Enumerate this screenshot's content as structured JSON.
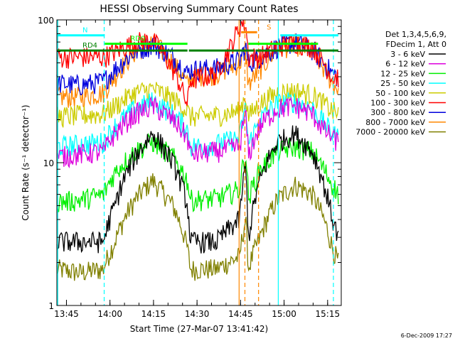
{
  "chart_data": {
    "type": "line",
    "title": "HESSI Observing Summary Count Rates",
    "xlabel": "Start Time (27-Mar-07 13:41:42)",
    "ylabel": "Count Rate (s⁻¹ detector⁻¹)",
    "x_unit": "minutes after 13:41:42",
    "xlim": [
      0,
      98
    ],
    "ylim": [
      1,
      100
    ],
    "yscale": "log",
    "x_tick_labels": [
      "13:45",
      "14:00",
      "14:15",
      "14:30",
      "14:45",
      "15:00",
      "15:15"
    ],
    "x_tick_values": [
      3.3,
      18.3,
      33.3,
      48.3,
      63.3,
      78.3,
      93.3
    ],
    "y_tick_labels": [
      "1",
      "10",
      "100"
    ],
    "y_tick_values": [
      1,
      10,
      100
    ],
    "legend_header": [
      "Det 1,3,4,5,6,9,",
      "FDecim 1, Att 0"
    ],
    "legend_placement": "right",
    "footer_date": "6-Dec-2009 17:27",
    "series": [
      {
        "name": "3 - 6 keV",
        "color": "#000000",
        "x": [
          0,
          8,
          16,
          20,
          27,
          33,
          40,
          45,
          46,
          55,
          63,
          65,
          66,
          70,
          76,
          82,
          88,
          92,
          95,
          97
        ],
        "y": [
          2.8,
          2.8,
          2.8,
          5.0,
          11.0,
          16.0,
          10.0,
          5.0,
          2.8,
          2.8,
          4.0,
          9.5,
          2.8,
          7.5,
          14.0,
          16.0,
          12.0,
          7.0,
          4.0,
          3.0
        ]
      },
      {
        "name": "6 - 12 keV",
        "color": "#dd00dd",
        "x": [
          0,
          8,
          16,
          20,
          27,
          33,
          40,
          45,
          46,
          55,
          63,
          65,
          66,
          70,
          76,
          82,
          88,
          92,
          95,
          97
        ],
        "y": [
          11.0,
          11.5,
          12.0,
          16.0,
          22.0,
          25.0,
          20.0,
          15.0,
          11.5,
          12.0,
          13.0,
          22.0,
          11.0,
          18.0,
          24.0,
          25.0,
          22.0,
          17.0,
          15.0,
          14.0
        ]
      },
      {
        "name": "12 - 25 keV",
        "color": "#00ee00",
        "x": [
          0,
          8,
          16,
          20,
          27,
          33,
          40,
          45,
          46,
          55,
          63,
          65,
          66,
          70,
          76,
          82,
          88,
          92,
          95,
          97
        ],
        "y": [
          5.3,
          5.5,
          6.0,
          8.5,
          12.0,
          14.0,
          11.0,
          7.5,
          5.5,
          5.6,
          6.5,
          12.0,
          5.5,
          9.0,
          12.0,
          13.0,
          12.0,
          9.0,
          7.0,
          6.0
        ]
      },
      {
        "name": "25 - 50 keV",
        "color": "#00ffff",
        "x": [
          0,
          8,
          16,
          20,
          27,
          33,
          40,
          45,
          46,
          55,
          63,
          65,
          66,
          70,
          76,
          82,
          88,
          92,
          95,
          97
        ],
        "y": [
          13.0,
          13.5,
          14.0,
          18.0,
          24.0,
          27.0,
          22.0,
          17.0,
          13.0,
          13.5,
          15.0,
          24.0,
          13.0,
          20.0,
          26.0,
          27.0,
          24.0,
          19.0,
          16.0,
          15.0
        ]
      },
      {
        "name": "50 - 100 keV",
        "color": "#cccc00",
        "x": [
          0,
          8,
          16,
          20,
          27,
          33,
          40,
          45,
          46,
          55,
          63,
          65,
          66,
          70,
          76,
          82,
          88,
          92,
          95,
          97
        ],
        "y": [
          21.0,
          21.5,
          22.0,
          25.0,
          31.0,
          33.0,
          28.0,
          23.0,
          21.0,
          21.5,
          23.0,
          30.0,
          21.0,
          26.0,
          31.0,
          32.0,
          30.0,
          26.0,
          23.0,
          22.0
        ]
      },
      {
        "name": "100 - 300 keV",
        "color": "#ff0000",
        "x": [
          0,
          8,
          16,
          20,
          27,
          33,
          40,
          45,
          46,
          55,
          60,
          63,
          64,
          65,
          66,
          70,
          76,
          82,
          88,
          92,
          95,
          97
        ],
        "y": [
          55.0,
          55.0,
          55.0,
          60.0,
          70.0,
          72.0,
          45.0,
          25.0,
          38.0,
          42.0,
          65.0,
          90.0,
          97.0,
          95.0,
          55.0,
          55.0,
          65.0,
          70.0,
          65.0,
          50.0,
          40.0,
          40.0
        ]
      },
      {
        "name": "300 - 800 keV",
        "color": "#0000dd",
        "x": [
          0,
          8,
          16,
          20,
          27,
          33,
          40,
          45,
          46,
          55,
          63,
          65,
          66,
          70,
          76,
          82,
          88,
          92,
          95,
          97
        ],
        "y": [
          36.0,
          35.0,
          37.0,
          45.0,
          60.0,
          68.0,
          55.0,
          42.0,
          45.0,
          46.0,
          52.0,
          65.0,
          50.0,
          55.0,
          65.0,
          70.0,
          62.0,
          50.0,
          42.0,
          40.0
        ]
      },
      {
        "name": "800 - 7000 keV",
        "color": "#ff8800",
        "x": [
          0,
          8,
          16,
          20,
          27,
          33,
          40,
          45,
          46,
          55,
          63,
          65,
          66,
          70,
          76,
          82,
          88,
          92,
          95,
          97
        ],
        "y": [
          29.0,
          29.0,
          31.0,
          40.0,
          60.0,
          70.0,
          50.0,
          35.0,
          40.0,
          42.0,
          50.0,
          60.0,
          35.0,
          45.0,
          62.0,
          68.0,
          60.0,
          45.0,
          36.0,
          33.0
        ]
      },
      {
        "name": "7000 - 20000 keV",
        "color": "#808000",
        "x": [
          0,
          8,
          16,
          20,
          27,
          33,
          40,
          45,
          46,
          55,
          63,
          65,
          66,
          70,
          76,
          82,
          88,
          92,
          95,
          97
        ],
        "y": [
          1.8,
          1.7,
          1.8,
          2.8,
          5.5,
          7.5,
          5.0,
          2.5,
          1.8,
          1.8,
          2.2,
          4.0,
          1.8,
          3.0,
          5.5,
          7.0,
          6.0,
          4.0,
          2.5,
          2.0
        ]
      }
    ],
    "flag_bars": [
      {
        "label": "N",
        "color": "#00ffff",
        "segments": [
          [
            0,
            16.5
          ],
          [
            77,
            97
          ]
        ],
        "level": 78
      },
      {
        "label": "RD0",
        "color": "#00ff00",
        "segments": [
          [
            16.5,
            45
          ],
          [
            66,
            90
          ]
        ],
        "level": 68
      },
      {
        "label": "RD4",
        "color": "#008000",
        "segments": [
          [
            0,
            45
          ],
          [
            45.5,
            68
          ],
          [
            68.5,
            97
          ]
        ],
        "level": 61
      },
      {
        "label": "S",
        "color": "#ff8800",
        "segments": [
          [
            63.5,
            69
          ]
        ],
        "level": 82
      }
    ],
    "vertical_lines": [
      {
        "x": 0.3,
        "color": "#00ffff",
        "style": "solid"
      },
      {
        "x": 16.3,
        "color": "#00ffff",
        "style": "dashed"
      },
      {
        "x": 62.8,
        "color": "#ff8800",
        "style": "solid"
      },
      {
        "x": 64.8,
        "color": "#ff8800",
        "style": "dashed"
      },
      {
        "x": 69.5,
        "color": "#ff8800",
        "style": "dashed"
      },
      {
        "x": 76.3,
        "color": "#00ffff",
        "style": "solid"
      },
      {
        "x": 95.3,
        "color": "#00ffff",
        "style": "dashed"
      }
    ]
  }
}
